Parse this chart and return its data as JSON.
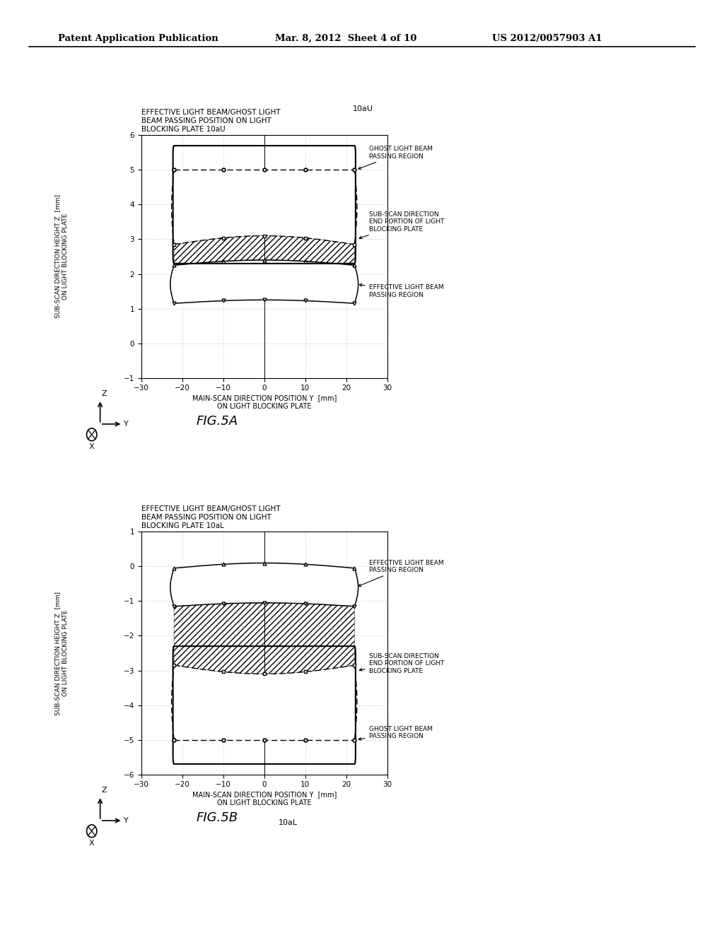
{
  "header_left": "Patent Application Publication",
  "header_center": "Mar. 8, 2012  Sheet 4 of 10",
  "header_right": "US 2012/0057903 A1",
  "fig_a": {
    "title": "EFFECTIVE LIGHT BEAM/GHOST LIGHT\nBEAM PASSING POSITION ON LIGHT\nBLOCKING PLATE 10aU",
    "label_10aU": "10aU",
    "xlabel": "MAIN-SCAN DIRECTION POSITION Y  [mm]\nON LIGHT BLOCKING PLATE",
    "ylabel": "SUB-SCAN DIRECTION HEIGHT Z  [mm]\nON LIGHT BLOCKING PLATE",
    "xlim": [
      -30,
      30
    ],
    "ylim": [
      -1.0,
      6.0
    ],
    "yticks": [
      -1.0,
      0.0,
      1.0,
      2.0,
      3.0,
      4.0,
      5.0,
      6.0
    ],
    "xticks": [
      -30,
      -20,
      -10,
      0,
      10,
      20,
      30
    ],
    "figname": "FIG.5A"
  },
  "fig_b": {
    "title": "EFFECTIVE LIGHT BEAM/GHOST LIGHT\nBEAM PASSING POSITION ON LIGHT\nBLOCKING PLATE 10aL",
    "label_10aL": "10aL",
    "xlabel": "MAIN-SCAN DIRECTION POSITION Y  [mm]\nON LIGHT BLOCKING PLATE",
    "ylabel": "SUB-SCAN DIRECTION HEIGHT Z  [mm]\nON LIGHT BLOCKING PLATE",
    "xlim": [
      -30,
      30
    ],
    "ylim": [
      -6.0,
      1.0
    ],
    "yticks": [
      -6.0,
      -5.0,
      -4.0,
      -3.0,
      -2.0,
      -1.0,
      0.0,
      1.0
    ],
    "xticks": [
      -30,
      -20,
      -10,
      0,
      10,
      20,
      30
    ],
    "figname": "FIG.5B"
  },
  "bg_color": "#ffffff"
}
